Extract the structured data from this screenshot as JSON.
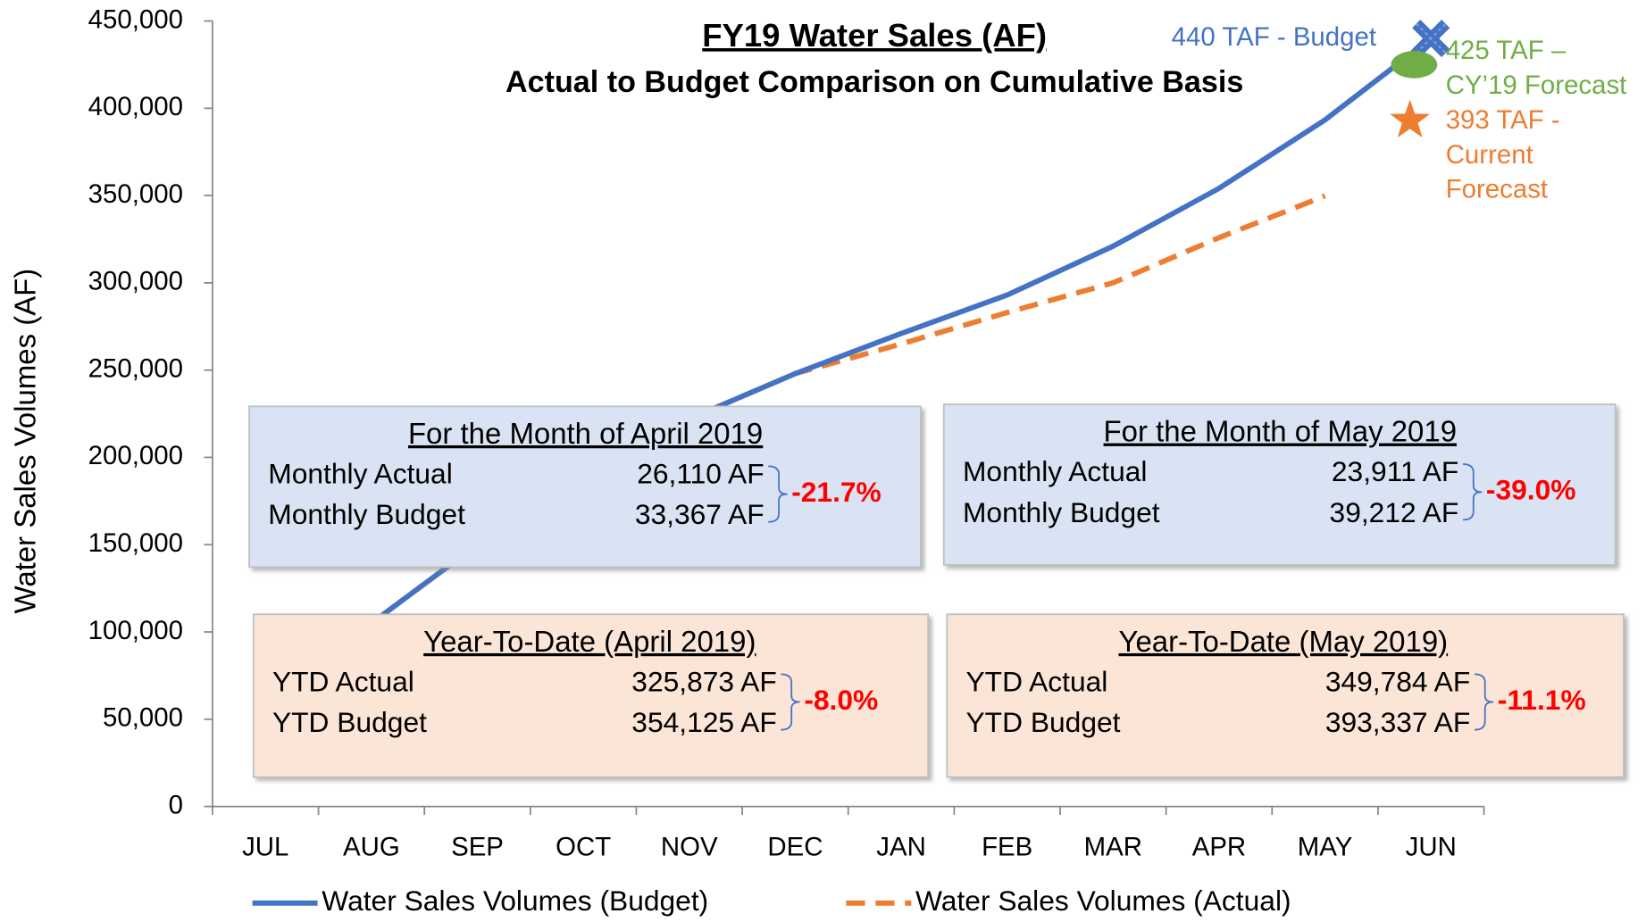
{
  "chart_data": {
    "type": "line",
    "title": "FY19 Water Sales (AF)",
    "subtitle": "Actual to Budget Comparison on Cumulative Basis",
    "y_label": "Water Sales Volumes (AF)",
    "categories": [
      "JUL",
      "AUG",
      "SEP",
      "OCT",
      "NOV",
      "DEC",
      "JAN",
      "FEB",
      "MAR",
      "APR",
      "MAY",
      "JUN"
    ],
    "series": [
      {
        "name": "Water Sales Volumes (Budget)",
        "color": "#4472c4",
        "dashed": false,
        "values": [
          40000,
          105000,
          150000,
          190000,
          222000,
          248000,
          271000,
          293000,
          321000,
          354125,
          393337,
          440000
        ]
      },
      {
        "name": "Water Sales Volumes (Actual)",
        "color": "#ed7d31",
        "dashed": true,
        "values": [
          40000,
          105000,
          150000,
          190000,
          222000,
          248000,
          265000,
          283000,
          300000,
          325873,
          349784,
          null
        ]
      }
    ],
    "ylim": [
      0,
      450000
    ],
    "yticks": [
      0,
      {
        "value": 50000,
        "label": "50,000"
      },
      {
        "value": 100000,
        "label": "100,000"
      },
      {
        "value": 150000,
        "label": "150,000"
      },
      {
        "value": 200000,
        "label": "200,000"
      },
      {
        "value": 250000,
        "label": "250,000"
      },
      {
        "value": 300000,
        "label": "300,000"
      },
      {
        "value": 350000,
        "label": "350,000"
      },
      {
        "value": 400000,
        "label": "400,000"
      },
      {
        "value": 450000,
        "label": "450,000"
      }
    ],
    "annotations": [
      {
        "lines": [
          "440 TAF - Budget"
        ],
        "value": 440000,
        "marker": "x",
        "color": "#4472c4"
      },
      {
        "lines": [
          "425 TAF –",
          "CY’19 Forecast"
        ],
        "value": 425000,
        "marker": "ellipse",
        "color": "#70ad47"
      },
      {
        "lines": [
          "393 TAF -",
          "Current",
          "Forecast"
        ],
        "value": 393000,
        "marker": "star",
        "color": "#ed7d31"
      }
    ],
    "panels": [
      {
        "title": "For the Month of April 2019",
        "rows": [
          {
            "label": "Monthly Actual",
            "value": "26,110 AF"
          },
          {
            "label": "Monthly Budget",
            "value": "33,367 AF"
          }
        ],
        "change": "-21.7%",
        "fill": "#dae3f3"
      },
      {
        "title": "For the Month of May 2019",
        "rows": [
          {
            "label": "Monthly Actual",
            "value": "23,911 AF"
          },
          {
            "label": "Monthly Budget",
            "value": "39,212 AF"
          }
        ],
        "change": "-39.0%",
        "fill": "#dae3f3"
      },
      {
        "title": "Year-To-Date (April 2019)",
        "rows": [
          {
            "label": "YTD Actual",
            "value": "325,873 AF"
          },
          {
            "label": "YTD Budget",
            "value": "354,125 AF"
          }
        ],
        "change": "-8.0%",
        "fill": "#fbe5d6"
      },
      {
        "title": "Year-To-Date (May 2019)",
        "rows": [
          {
            "label": "YTD Actual",
            "value": "349,784 AF"
          },
          {
            "label": "YTD Budget",
            "value": "393,337 AF"
          }
        ],
        "change": "-11.1%",
        "fill": "#fbe5d6"
      }
    ]
  }
}
